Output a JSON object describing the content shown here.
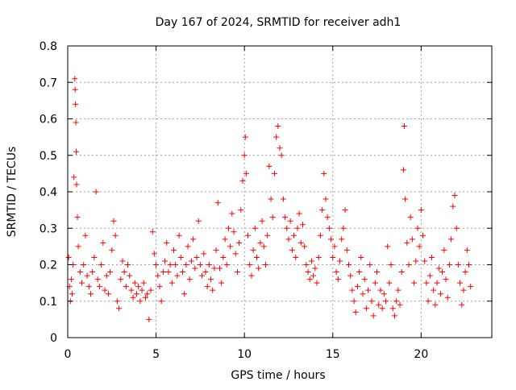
{
  "chart_data": {
    "type": "scatter",
    "title": "Day 167 of 2024, SRMTID for receiver adh1",
    "xlabel": "GPS time / hours",
    "ylabel": "SRMTID / TECUs",
    "xlim": [
      0,
      24
    ],
    "ylim": [
      0,
      0.8
    ],
    "grid": true,
    "marker": "+",
    "marker_color": "#ff0000",
    "x_ticks": [
      0,
      5,
      10,
      15,
      20
    ],
    "x_tick_labels": [
      "0",
      "5",
      "10",
      "15",
      "20"
    ],
    "y_ticks": [
      0,
      0.1,
      0.2,
      0.3,
      0.4,
      0.5,
      0.6,
      0.7,
      0.8
    ],
    "y_tick_labels": [
      "0",
      "0.1",
      "0.2",
      "0.3",
      "0.4",
      "0.5",
      "0.6",
      "0.7",
      "0.8"
    ],
    "series": [
      {
        "name": "SRMTID",
        "points": [
          [
            0.05,
            0.22
          ],
          [
            0.1,
            0.14
          ],
          [
            0.15,
            0.1
          ],
          [
            0.2,
            0.16
          ],
          [
            0.25,
            0.12
          ],
          [
            0.3,
            0.2
          ],
          [
            0.35,
            0.44
          ],
          [
            0.4,
            0.71
          ],
          [
            0.42,
            0.68
          ],
          [
            0.44,
            0.64
          ],
          [
            0.46,
            0.59
          ],
          [
            0.48,
            0.51
          ],
          [
            0.5,
            0.42
          ],
          [
            0.55,
            0.33
          ],
          [
            0.6,
            0.25
          ],
          [
            0.7,
            0.18
          ],
          [
            0.8,
            0.15
          ],
          [
            0.9,
            0.2
          ],
          [
            1.0,
            0.28
          ],
          [
            1.1,
            0.17
          ],
          [
            1.2,
            0.14
          ],
          [
            1.3,
            0.12
          ],
          [
            1.4,
            0.18
          ],
          [
            1.5,
            0.22
          ],
          [
            1.6,
            0.4
          ],
          [
            1.7,
            0.16
          ],
          [
            1.8,
            0.14
          ],
          [
            1.9,
            0.2
          ],
          [
            2.0,
            0.26
          ],
          [
            2.1,
            0.13
          ],
          [
            2.2,
            0.17
          ],
          [
            2.3,
            0.12
          ],
          [
            2.4,
            0.18
          ],
          [
            2.5,
            0.24
          ],
          [
            2.6,
            0.32
          ],
          [
            2.7,
            0.28
          ],
          [
            2.8,
            0.1
          ],
          [
            2.9,
            0.08
          ],
          [
            3.0,
            0.16
          ],
          [
            3.1,
            0.21
          ],
          [
            3.2,
            0.18
          ],
          [
            3.3,
            0.14
          ],
          [
            3.4,
            0.2
          ],
          [
            3.5,
            0.17
          ],
          [
            3.6,
            0.13
          ],
          [
            3.7,
            0.11
          ],
          [
            3.8,
            0.15
          ],
          [
            3.9,
            0.12
          ],
          [
            4.0,
            0.14
          ],
          [
            4.1,
            0.1
          ],
          [
            4.2,
            0.13
          ],
          [
            4.3,
            0.15
          ],
          [
            4.4,
            0.11
          ],
          [
            4.5,
            0.12
          ],
          [
            4.6,
            0.05
          ],
          [
            4.7,
            0.13
          ],
          [
            4.8,
            0.29
          ],
          [
            4.9,
            0.23
          ],
          [
            5.0,
            0.2
          ],
          [
            5.1,
            0.17
          ],
          [
            5.2,
            0.14
          ],
          [
            5.3,
            0.1
          ],
          [
            5.4,
            0.18
          ],
          [
            5.5,
            0.21
          ],
          [
            5.6,
            0.26
          ],
          [
            5.7,
            0.18
          ],
          [
            5.8,
            0.2
          ],
          [
            5.9,
            0.15
          ],
          [
            6.0,
            0.24
          ],
          [
            6.1,
            0.2
          ],
          [
            6.2,
            0.17
          ],
          [
            6.3,
            0.28
          ],
          [
            6.4,
            0.22
          ],
          [
            6.5,
            0.18
          ],
          [
            6.6,
            0.12
          ],
          [
            6.7,
            0.2
          ],
          [
            6.8,
            0.25
          ],
          [
            6.9,
            0.16
          ],
          [
            7.0,
            0.21
          ],
          [
            7.1,
            0.27
          ],
          [
            7.2,
            0.19
          ],
          [
            7.3,
            0.22
          ],
          [
            7.4,
            0.32
          ],
          [
            7.5,
            0.2
          ],
          [
            7.6,
            0.17
          ],
          [
            7.7,
            0.23
          ],
          [
            7.8,
            0.18
          ],
          [
            7.9,
            0.14
          ],
          [
            8.0,
            0.2
          ],
          [
            8.1,
            0.16
          ],
          [
            8.2,
            0.13
          ],
          [
            8.3,
            0.19
          ],
          [
            8.4,
            0.24
          ],
          [
            8.5,
            0.37
          ],
          [
            8.6,
            0.19
          ],
          [
            8.7,
            0.15
          ],
          [
            8.8,
            0.22
          ],
          [
            8.9,
            0.27
          ],
          [
            9.0,
            0.2
          ],
          [
            9.1,
            0.3
          ],
          [
            9.2,
            0.25
          ],
          [
            9.3,
            0.34
          ],
          [
            9.4,
            0.29
          ],
          [
            9.5,
            0.23
          ],
          [
            9.6,
            0.18
          ],
          [
            9.7,
            0.26
          ],
          [
            9.8,
            0.35
          ],
          [
            9.9,
            0.43
          ],
          [
            10.0,
            0.5
          ],
          [
            10.05,
            0.55
          ],
          [
            10.1,
            0.45
          ],
          [
            10.2,
            0.28
          ],
          [
            10.3,
            0.2
          ],
          [
            10.4,
            0.17
          ],
          [
            10.5,
            0.24
          ],
          [
            10.6,
            0.3
          ],
          [
            10.7,
            0.22
          ],
          [
            10.8,
            0.19
          ],
          [
            10.9,
            0.26
          ],
          [
            11.0,
            0.32
          ],
          [
            11.1,
            0.25
          ],
          [
            11.2,
            0.2
          ],
          [
            11.3,
            0.28
          ],
          [
            11.4,
            0.47
          ],
          [
            11.5,
            0.38
          ],
          [
            11.6,
            0.33
          ],
          [
            11.7,
            0.45
          ],
          [
            11.8,
            0.55
          ],
          [
            11.9,
            0.58
          ],
          [
            12.0,
            0.52
          ],
          [
            12.1,
            0.5
          ],
          [
            12.2,
            0.38
          ],
          [
            12.3,
            0.33
          ],
          [
            12.4,
            0.3
          ],
          [
            12.5,
            0.27
          ],
          [
            12.6,
            0.32
          ],
          [
            12.7,
            0.24
          ],
          [
            12.8,
            0.28
          ],
          [
            12.9,
            0.22
          ],
          [
            13.0,
            0.3
          ],
          [
            13.1,
            0.34
          ],
          [
            13.2,
            0.26
          ],
          [
            13.3,
            0.31
          ],
          [
            13.4,
            0.25
          ],
          [
            13.5,
            0.2
          ],
          [
            13.6,
            0.18
          ],
          [
            13.7,
            0.16
          ],
          [
            13.8,
            0.21
          ],
          [
            13.9,
            0.17
          ],
          [
            14.0,
            0.19
          ],
          [
            14.1,
            0.15
          ],
          [
            14.2,
            0.22
          ],
          [
            14.3,
            0.28
          ],
          [
            14.4,
            0.35
          ],
          [
            14.5,
            0.45
          ],
          [
            14.6,
            0.38
          ],
          [
            14.7,
            0.33
          ],
          [
            14.8,
            0.3
          ],
          [
            14.9,
            0.27
          ],
          [
            15.0,
            0.22
          ],
          [
            15.1,
            0.25
          ],
          [
            15.2,
            0.18
          ],
          [
            15.3,
            0.16
          ],
          [
            15.4,
            0.21
          ],
          [
            15.5,
            0.27
          ],
          [
            15.6,
            0.3
          ],
          [
            15.7,
            0.35
          ],
          [
            15.8,
            0.24
          ],
          [
            15.9,
            0.2
          ],
          [
            16.0,
            0.17
          ],
          [
            16.1,
            0.13
          ],
          [
            16.2,
            0.1
          ],
          [
            16.3,
            0.07
          ],
          [
            16.4,
            0.14
          ],
          [
            16.5,
            0.18
          ],
          [
            16.6,
            0.22
          ],
          [
            16.7,
            0.12
          ],
          [
            16.8,
            0.16
          ],
          [
            16.9,
            0.08
          ],
          [
            17.0,
            0.13
          ],
          [
            17.1,
            0.2
          ],
          [
            17.2,
            0.1
          ],
          [
            17.3,
            0.06
          ],
          [
            17.4,
            0.15
          ],
          [
            17.5,
            0.18
          ],
          [
            17.6,
            0.09
          ],
          [
            17.7,
            0.13
          ],
          [
            17.8,
            0.08
          ],
          [
            17.9,
            0.12
          ],
          [
            18.0,
            0.1
          ],
          [
            18.1,
            0.25
          ],
          [
            18.2,
            0.15
          ],
          [
            18.3,
            0.2
          ],
          [
            18.4,
            0.08
          ],
          [
            18.5,
            0.06
          ],
          [
            18.6,
            0.1
          ],
          [
            18.7,
            0.13
          ],
          [
            18.8,
            0.09
          ],
          [
            18.9,
            0.18
          ],
          [
            19.0,
            0.46
          ],
          [
            19.05,
            0.58
          ],
          [
            19.1,
            0.38
          ],
          [
            19.2,
            0.26
          ],
          [
            19.3,
            0.2
          ],
          [
            19.4,
            0.33
          ],
          [
            19.5,
            0.27
          ],
          [
            19.6,
            0.15
          ],
          [
            19.7,
            0.21
          ],
          [
            19.8,
            0.3
          ],
          [
            19.9,
            0.25
          ],
          [
            20.0,
            0.35
          ],
          [
            20.1,
            0.28
          ],
          [
            20.2,
            0.21
          ],
          [
            20.3,
            0.15
          ],
          [
            20.4,
            0.1
          ],
          [
            20.5,
            0.17
          ],
          [
            20.6,
            0.22
          ],
          [
            20.7,
            0.13
          ],
          [
            20.8,
            0.09
          ],
          [
            20.9,
            0.15
          ],
          [
            21.0,
            0.19
          ],
          [
            21.1,
            0.12
          ],
          [
            21.2,
            0.18
          ],
          [
            21.3,
            0.24
          ],
          [
            21.4,
            0.16
          ],
          [
            21.5,
            0.11
          ],
          [
            21.6,
            0.2
          ],
          [
            21.7,
            0.27
          ],
          [
            21.8,
            0.36
          ],
          [
            21.9,
            0.39
          ],
          [
            22.0,
            0.3
          ],
          [
            22.1,
            0.2
          ],
          [
            22.2,
            0.15
          ],
          [
            22.3,
            0.09
          ],
          [
            22.4,
            0.13
          ],
          [
            22.5,
            0.18
          ],
          [
            22.6,
            0.24
          ],
          [
            22.7,
            0.2
          ],
          [
            22.8,
            0.14
          ]
        ]
      }
    ]
  }
}
